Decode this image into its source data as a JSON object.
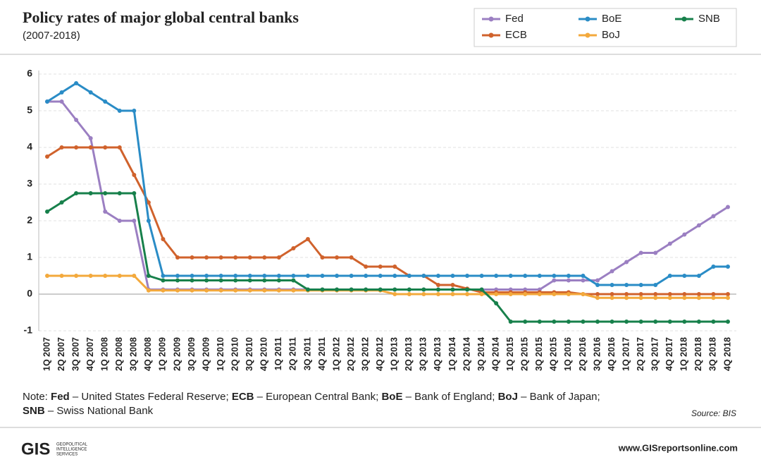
{
  "chart_data": {
    "type": "line",
    "title": "Policy rates of major global central banks",
    "subtitle": "(2007-2018)",
    "categories": [
      "1Q 2007",
      "2Q 2007",
      "3Q 2007",
      "4Q 2007",
      "1Q 2008",
      "2Q 2008",
      "3Q 2008",
      "4Q 2008",
      "1Q 2009",
      "2Q 2009",
      "3Q 2009",
      "4Q 2009",
      "1Q 2010",
      "2Q 2010",
      "3Q 2010",
      "4Q 2010",
      "1Q 2011",
      "2Q 2011",
      "3Q 2011",
      "4Q 2011",
      "1Q 2012",
      "2Q 2012",
      "3Q 2012",
      "4Q 2012",
      "1Q 2013",
      "2Q 2013",
      "3Q 2013",
      "4Q 2013",
      "1Q 2014",
      "2Q 2014",
      "3Q 2014",
      "4Q 2014",
      "1Q 2015",
      "2Q 2015",
      "3Q 2015",
      "4Q 2015",
      "1Q 2016",
      "2Q 2016",
      "3Q 2016",
      "4Q 2016",
      "1Q 2017",
      "2Q 2017",
      "3Q 2017",
      "4Q 2017",
      "1Q 2018",
      "2Q 2018",
      "3Q 2018",
      "4Q 2018"
    ],
    "series": [
      {
        "name": "Fed",
        "color": "#9b7fc2",
        "values": [
          5.25,
          5.25,
          4.75,
          4.25,
          2.25,
          2,
          2,
          0.125,
          0.125,
          0.125,
          0.125,
          0.125,
          0.125,
          0.125,
          0.125,
          0.125,
          0.125,
          0.125,
          0.125,
          0.125,
          0.125,
          0.125,
          0.125,
          0.125,
          0.125,
          0.125,
          0.125,
          0.125,
          0.125,
          0.125,
          0.125,
          0.125,
          0.125,
          0.125,
          0.125,
          0.375,
          0.375,
          0.375,
          0.375,
          0.625,
          0.875,
          1.125,
          1.125,
          1.375,
          1.625,
          1.875,
          2.125,
          2.375
        ]
      },
      {
        "name": "ECB",
        "color": "#d0622c",
        "values": [
          3.75,
          4,
          4,
          4,
          4,
          4,
          3.25,
          2.5,
          1.5,
          1,
          1,
          1,
          1,
          1,
          1,
          1,
          1,
          1.25,
          1.5,
          1,
          1,
          1,
          0.75,
          0.75,
          0.75,
          0.5,
          0.5,
          0.25,
          0.25,
          0.15,
          0.05,
          0.05,
          0.05,
          0.05,
          0.05,
          0.05,
          0.05,
          0,
          0,
          0,
          0,
          0,
          0,
          0,
          0,
          0,
          0,
          0
        ]
      },
      {
        "name": "BoE",
        "color": "#2a8cc6",
        "values": [
          5.25,
          5.5,
          5.75,
          5.5,
          5.25,
          5,
          5,
          2,
          0.5,
          0.5,
          0.5,
          0.5,
          0.5,
          0.5,
          0.5,
          0.5,
          0.5,
          0.5,
          0.5,
          0.5,
          0.5,
          0.5,
          0.5,
          0.5,
          0.5,
          0.5,
          0.5,
          0.5,
          0.5,
          0.5,
          0.5,
          0.5,
          0.5,
          0.5,
          0.5,
          0.5,
          0.5,
          0.5,
          0.25,
          0.25,
          0.25,
          0.25,
          0.25,
          0.5,
          0.5,
          0.5,
          0.75,
          0.75
        ]
      },
      {
        "name": "BoJ",
        "color": "#f3a93c",
        "values": [
          0.5,
          0.5,
          0.5,
          0.5,
          0.5,
          0.5,
          0.5,
          0.1,
          0.1,
          0.1,
          0.1,
          0.1,
          0.1,
          0.1,
          0.1,
          0.1,
          0.1,
          0.1,
          0.1,
          0.1,
          0.1,
          0.1,
          0.1,
          0.1,
          0,
          0,
          0,
          0,
          0,
          0,
          0,
          0,
          0,
          0,
          0,
          0,
          0,
          0,
          -0.1,
          -0.1,
          -0.1,
          -0.1,
          -0.1,
          -0.1,
          -0.1,
          -0.1,
          -0.1,
          -0.1
        ]
      },
      {
        "name": "SNB",
        "color": "#17804b",
        "values": [
          2.25,
          2.5,
          2.75,
          2.75,
          2.75,
          2.75,
          2.75,
          0.5,
          0.375,
          0.375,
          0.375,
          0.375,
          0.375,
          0.375,
          0.375,
          0.375,
          0.375,
          0.375,
          0.125,
          0.125,
          0.125,
          0.125,
          0.125,
          0.125,
          0.125,
          0.125,
          0.125,
          0.125,
          0.125,
          0.125,
          0.125,
          -0.25,
          -0.75,
          -0.75,
          -0.75,
          -0.75,
          -0.75,
          -0.75,
          -0.75,
          -0.75,
          -0.75,
          -0.75,
          -0.75,
          -0.75,
          -0.75,
          -0.75,
          -0.75,
          -0.75
        ]
      }
    ],
    "ylim": [
      -1,
      6
    ],
    "yticks": [
      -1,
      0,
      1,
      2,
      3,
      4,
      5,
      6
    ],
    "grid": true,
    "note_label": "Note:",
    "notes": [
      {
        "abbr": "Fed",
        "desc": "– United States Federal Reserve;"
      },
      {
        "abbr": "ECB",
        "desc": "– European Central Bank;"
      },
      {
        "abbr": "BoE",
        "desc": "– Bank of England;"
      },
      {
        "abbr": "BoJ",
        "desc": "– Bank of Japan;"
      },
      {
        "abbr": "SNB",
        "desc": "– Swiss National Bank"
      }
    ],
    "source": "Source: BIS",
    "logo": "GIS",
    "logo_lines": [
      "GEOPOLITICAL",
      "INTELLIGENCE",
      "SERVICES"
    ],
    "website": "www.GISreportsonline.com"
  }
}
